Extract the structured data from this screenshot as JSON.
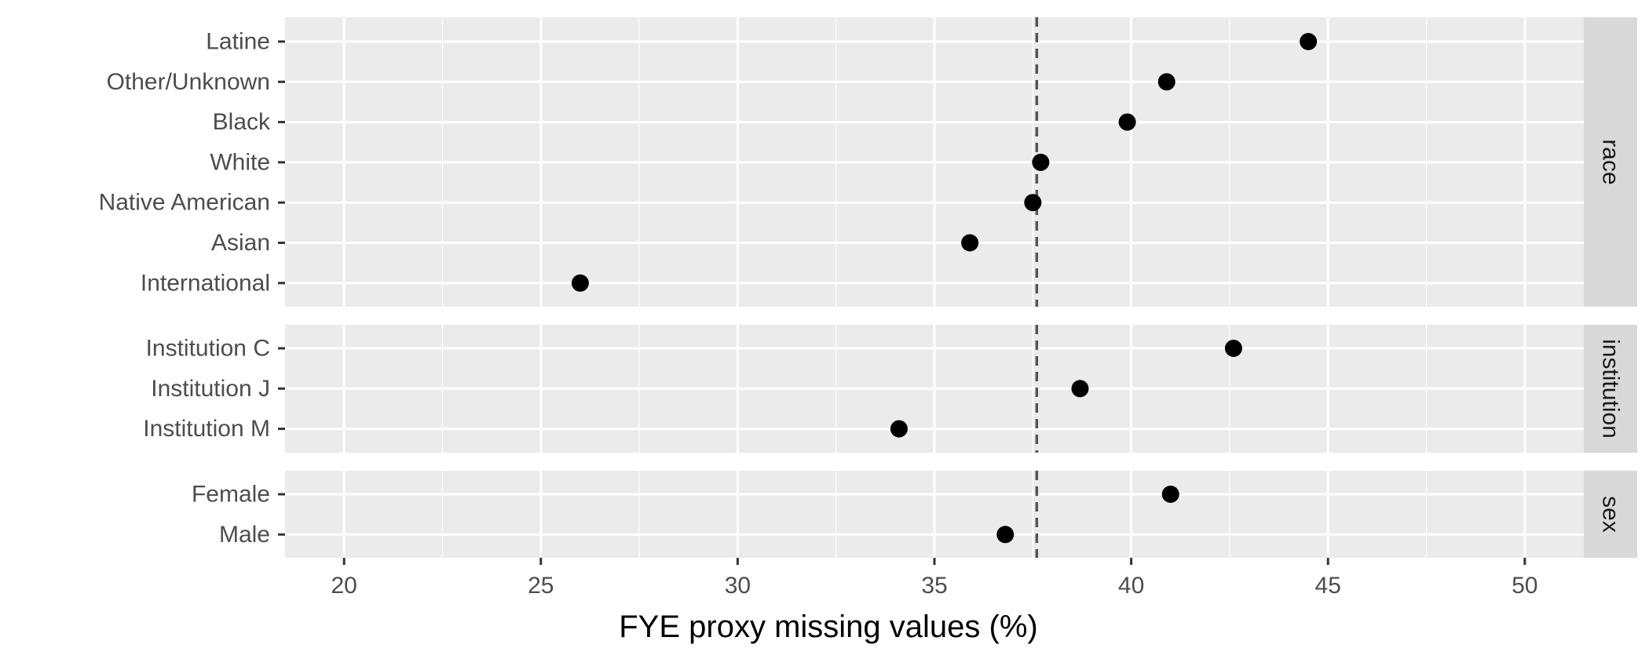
{
  "chart_data": {
    "type": "scatter",
    "xlabel": "FYE proxy missing values (%)",
    "xlim": [
      18.5,
      51.5
    ],
    "xticks": [
      20,
      25,
      30,
      35,
      40,
      45,
      50
    ],
    "reference_line_x": 37.6,
    "facets": [
      {
        "name": "race",
        "categories": [
          "Latine",
          "Other/Unknown",
          "Black",
          "White",
          "Native American",
          "Asian",
          "International"
        ],
        "values": [
          44.5,
          40.9,
          39.9,
          37.7,
          37.5,
          35.9,
          26.0
        ]
      },
      {
        "name": "institution",
        "categories": [
          "Institution C",
          "Institution J",
          "Institution M"
        ],
        "values": [
          42.6,
          38.7,
          34.1
        ]
      },
      {
        "name": "sex",
        "categories": [
          "Female",
          "Male"
        ],
        "values": [
          41.0,
          36.8
        ]
      }
    ],
    "colors": {
      "panel_background": "#ebebeb",
      "strip_background": "#d9d9d9",
      "grid": "#ffffff",
      "point": "#000000",
      "reference_line": "#555555"
    },
    "grid": true
  }
}
